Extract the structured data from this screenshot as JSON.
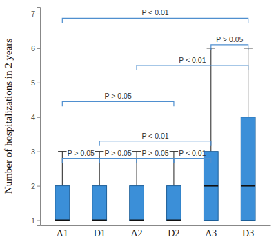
{
  "chart_data": {
    "type": "box",
    "y_label": "Number of hospitalizations in 2 years",
    "categories": [
      "A1",
      "D1",
      "A2",
      "D2",
      "A3",
      "D3"
    ],
    "color": "#3b8fd8",
    "boxes": [
      {
        "min": 1,
        "q1": 1,
        "median": 1,
        "q3": 2,
        "max": 3
      },
      {
        "min": 1,
        "q1": 1,
        "median": 1,
        "q3": 2,
        "max": 3
      },
      {
        "min": 1,
        "q1": 1,
        "median": 1,
        "q3": 2,
        "max": 3
      },
      {
        "min": 1,
        "q1": 1,
        "median": 1,
        "q3": 2,
        "max": 3
      },
      {
        "min": 1,
        "q1": 1,
        "median": 2,
        "q3": 3,
        "max": 6
      },
      {
        "min": 1,
        "q1": 1,
        "median": 2,
        "q3": 4,
        "max": 6
      }
    ],
    "ylim": [
      0.85,
      7.2
    ],
    "yticks": [
      1,
      2,
      3,
      4,
      5,
      6,
      7
    ],
    "grid": false,
    "annotations": [
      {
        "from": "A1",
        "to": "D3",
        "y": 6.87,
        "label": "P < 0.01"
      },
      {
        "from": "A3",
        "to": "D3",
        "y": 6.1,
        "label": "P > 0.05"
      },
      {
        "from": "A2",
        "to": "D3",
        "y": 5.5,
        "label": "P < 0.01"
      },
      {
        "from": "A1",
        "to": "D2",
        "y": 4.45,
        "label": "P > 0.05"
      },
      {
        "from": "D1",
        "to": "A3",
        "y": 3.3,
        "label": "P < 0.01"
      },
      {
        "from": "A1",
        "to": "D1",
        "y": 2.8,
        "label": "P > 0.05"
      },
      {
        "from": "D1",
        "to": "A2",
        "y": 2.8,
        "label": "P > 0.05"
      },
      {
        "from": "A2",
        "to": "D2",
        "y": 2.8,
        "label": "P > 0.05"
      },
      {
        "from": "D2",
        "to": "A3",
        "y": 2.8,
        "label": "P < 0.01"
      }
    ]
  }
}
